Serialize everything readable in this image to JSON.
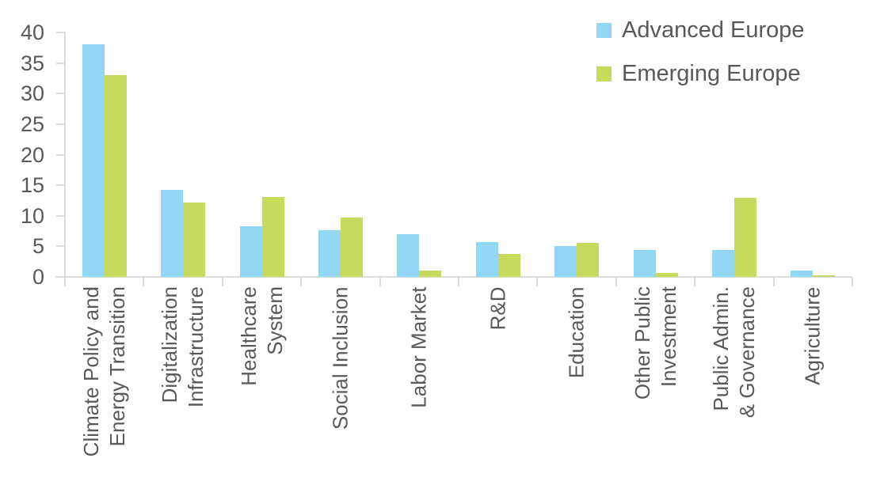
{
  "chart": {
    "legend": [
      {
        "label": "Advanced Europe",
        "color": "#92d8f5",
        "swatch": "advanced-europe-swatch"
      },
      {
        "label": "Emerging Europe",
        "color": "#c8da5b",
        "swatch": "emerging-europe-swatch"
      }
    ]
  },
  "chart_data": {
    "type": "bar",
    "title": "",
    "xlabel": "",
    "ylabel": "",
    "categories": [
      "Climate Policy and\nEnergy Transition",
      "Digitalization\nInfrastructure",
      "Healthcare\nSystem",
      "Social Inclusion",
      "Labor Market",
      "R&D",
      "Education",
      "Other Public\nInvestment",
      "Public Admin.\n& Governance",
      "Agriculture"
    ],
    "series": [
      {
        "name": "Advanced Europe",
        "color": "#92d8f5",
        "values": [
          38.0,
          14.3,
          8.3,
          7.7,
          7.0,
          5.7,
          5.0,
          4.4,
          4.4,
          1.1
        ]
      },
      {
        "name": "Emerging Europe",
        "color": "#c8da5b",
        "values": [
          33.0,
          12.2,
          13.1,
          9.7,
          1.0,
          3.7,
          5.6,
          0.7,
          13.0,
          0.3
        ]
      }
    ],
    "ylim": [
      0,
      40
    ],
    "yticks": [
      0,
      5,
      10,
      15,
      20,
      25,
      30,
      35,
      40
    ],
    "grid": false,
    "legend_position": "top-right",
    "style": {
      "text_color": "#595959",
      "axis_color": "#dcdcdc",
      "background": "#ffffff"
    }
  }
}
